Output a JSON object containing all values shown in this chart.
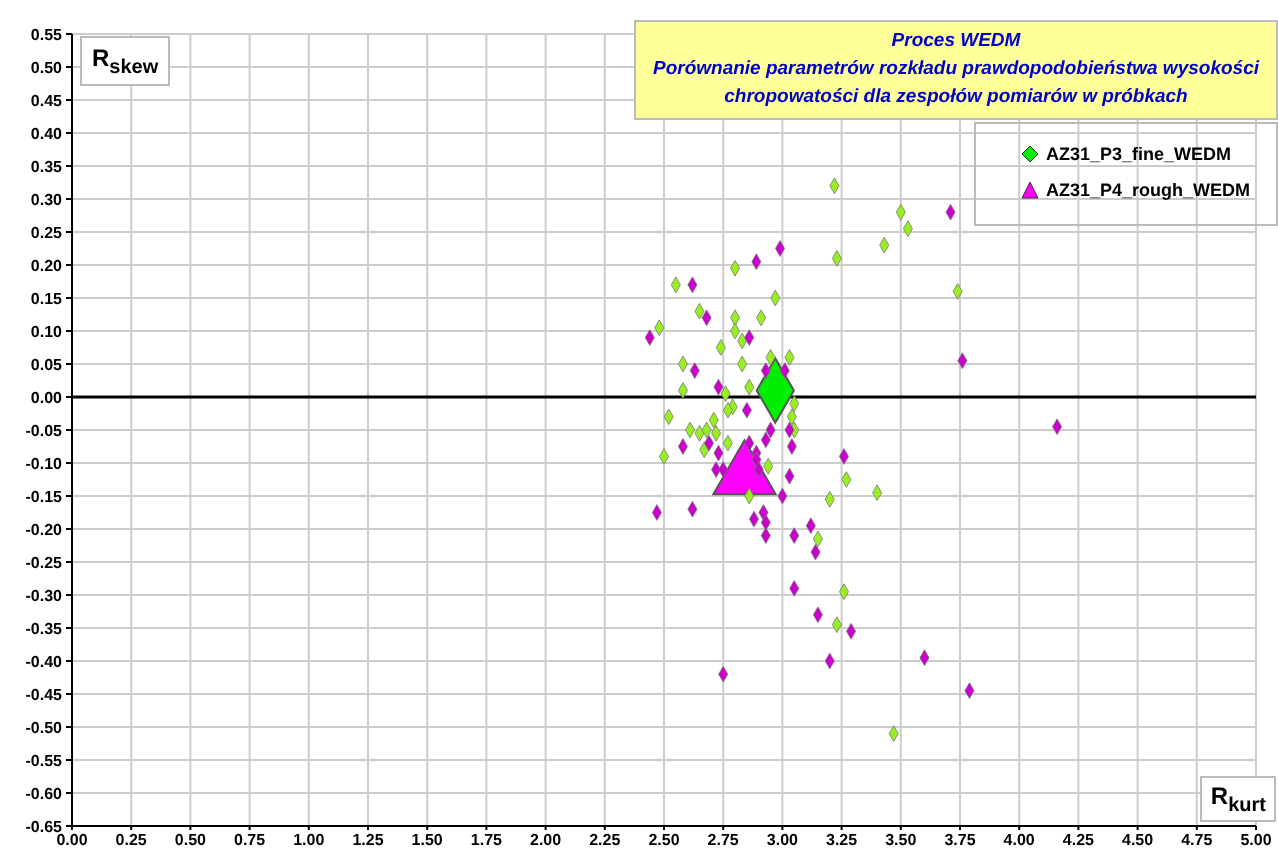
{
  "chart_data": {
    "type": "scatter",
    "title": "Proces WEDM",
    "subtitle": "Porównanie parametrów rozkładu prawdopodobieństwa wysokości chropowatości dla zespołów pomiarów w próbkach",
    "xlabel": "R$_{kurt}$",
    "ylabel": "R$_{skew}$",
    "xlim": [
      0,
      5
    ],
    "ylim": [
      -0.65,
      0.55
    ],
    "xticks": [
      {
        "value": 0,
        "label": "0.00"
      },
      {
        "value": 0.25,
        "label": "0.25"
      },
      {
        "value": 0.5,
        "label": "0.50"
      },
      {
        "value": 0.75,
        "label": "0.75"
      },
      {
        "value": 1,
        "label": "1.00"
      },
      {
        "value": 1.25,
        "label": "1.25"
      },
      {
        "value": 1.5,
        "label": "1.50"
      },
      {
        "value": 1.75,
        "label": "1.75"
      },
      {
        "value": 2,
        "label": "2.00"
      },
      {
        "value": 2.25,
        "label": "2.25"
      },
      {
        "value": 2.5,
        "label": "2.50"
      },
      {
        "value": 2.75,
        "label": "2.75"
      },
      {
        "value": 3,
        "label": "3.00"
      },
      {
        "value": 3.25,
        "label": "3.25"
      },
      {
        "value": 3.5,
        "label": "3.50"
      },
      {
        "value": 3.75,
        "label": "3.75"
      },
      {
        "value": 4,
        "label": "4.00"
      },
      {
        "value": 4.25,
        "label": "4.25"
      },
      {
        "value": 4.5,
        "label": "4.50"
      },
      {
        "value": 4.75,
        "label": "4.75"
      },
      {
        "value": 5,
        "label": "5.00"
      }
    ],
    "yticks": [
      {
        "value": -0.65,
        "label": "-0.65"
      },
      {
        "value": -0.6,
        "label": "-0.60"
      },
      {
        "value": -0.55,
        "label": "-0.55"
      },
      {
        "value": -0.5,
        "label": "-0.50"
      },
      {
        "value": -0.45,
        "label": "-0.45"
      },
      {
        "value": -0.4,
        "label": "-0.40"
      },
      {
        "value": -0.35,
        "label": "-0.35"
      },
      {
        "value": -0.3,
        "label": "-0.30"
      },
      {
        "value": -0.25,
        "label": "-0.25"
      },
      {
        "value": -0.2,
        "label": "-0.20"
      },
      {
        "value": -0.15,
        "label": "-0.15"
      },
      {
        "value": -0.1,
        "label": "-0.10"
      },
      {
        "value": -0.05,
        "label": "-0.05"
      },
      {
        "value": 0,
        "label": "0.00"
      },
      {
        "value": 0.05,
        "label": "0.05"
      },
      {
        "value": 0.1,
        "label": "0.10"
      },
      {
        "value": 0.15,
        "label": "0.15"
      },
      {
        "value": 0.2,
        "label": "0.20"
      },
      {
        "value": 0.25,
        "label": "0.25"
      },
      {
        "value": 0.3,
        "label": "0.30"
      },
      {
        "value": 0.35,
        "label": "0.35"
      },
      {
        "value": 0.4,
        "label": "0.40"
      },
      {
        "value": 0.45,
        "label": "0.45"
      },
      {
        "value": 0.5,
        "label": "0.50"
      },
      {
        "value": 0.55,
        "label": "0.55"
      }
    ],
    "grid": true,
    "legend": "top right",
    "ref_lines": [
      {
        "axis": "y",
        "value": 0,
        "color": "#000000"
      }
    ],
    "series": [
      {
        "name": "AZ31_P3_fine_WEDM",
        "color": "#00ee00",
        "marker": "diamond",
        "x": [
          2.97
        ],
        "values": [
          0.01
        ]
      },
      {
        "name": "AZ31_P4_rough_WEDM",
        "color": "#ff00ff",
        "marker": "triangle",
        "x": [
          2.84
        ],
        "values": [
          -0.12
        ]
      },
      {
        "color": "#99ee22",
        "marker": "diamond",
        "x": [
          3.22,
          3.5,
          3.53,
          3.43,
          3.23,
          2.8,
          2.55,
          2.97,
          3.74,
          2.65,
          2.48,
          2.8,
          2.91,
          2.8,
          2.74,
          2.83,
          2.58,
          2.83,
          2.95,
          3.03,
          2.58,
          2.76,
          2.86,
          3.05,
          2.79,
          2.77,
          2.52,
          2.71,
          3.04,
          2.61,
          2.65,
          2.68,
          2.72,
          3.05,
          2.5,
          2.67,
          2.77,
          2.94,
          3.27,
          3.4,
          3.2,
          2.86,
          3.15,
          3.26,
          3.23,
          3.47
        ],
        "values": [
          0.32,
          0.28,
          0.255,
          0.23,
          0.21,
          0.195,
          0.17,
          0.15,
          0.16,
          0.13,
          0.105,
          0.12,
          0.12,
          0.1,
          0.075,
          0.085,
          0.05,
          0.05,
          0.06,
          0.06,
          0.01,
          0.005,
          0.015,
          -0.01,
          -0.015,
          -0.02,
          -0.03,
          -0.035,
          -0.03,
          -0.05,
          -0.055,
          -0.05,
          -0.055,
          -0.05,
          -0.09,
          -0.08,
          -0.07,
          -0.105,
          -0.125,
          -0.145,
          -0.155,
          -0.15,
          -0.215,
          -0.295,
          -0.345,
          -0.51
        ]
      },
      {
        "color": "#cc00cc",
        "marker": "diamond",
        "x": [
          3.71,
          2.99,
          2.89,
          2.62,
          2.68,
          2.44,
          2.86,
          2.63,
          2.93,
          3.01,
          3.76,
          2.73,
          2.85,
          4.16,
          2.95,
          3.03,
          2.93,
          2.58,
          2.69,
          2.86,
          3.04,
          2.73,
          2.89,
          2.89,
          3.26,
          2.72,
          2.75,
          2.9,
          3.03,
          3.0,
          2.47,
          2.62,
          2.88,
          2.92,
          2.93,
          2.93,
          3.12,
          3.05,
          3.14,
          3.05,
          3.15,
          3.29,
          3.2,
          3.6,
          2.75,
          3.79
        ],
        "values": [
          0.28,
          0.225,
          0.205,
          0.17,
          0.12,
          0.09,
          0.09,
          0.04,
          0.04,
          0.04,
          0.055,
          0.015,
          -0.02,
          -0.045,
          -0.05,
          -0.05,
          -0.065,
          -0.075,
          -0.07,
          -0.07,
          -0.075,
          -0.085,
          -0.085,
          -0.095,
          -0.09,
          -0.11,
          -0.11,
          -0.11,
          -0.12,
          -0.15,
          -0.175,
          -0.17,
          -0.185,
          -0.175,
          -0.19,
          -0.21,
          -0.195,
          -0.21,
          -0.235,
          -0.29,
          -0.33,
          -0.355,
          -0.4,
          -0.395,
          -0.42,
          -0.445
        ]
      }
    ]
  }
}
